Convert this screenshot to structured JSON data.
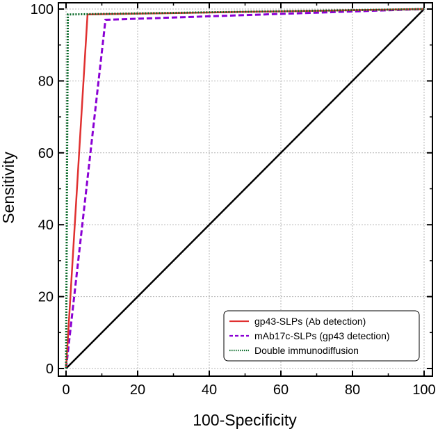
{
  "chart_data": {
    "type": "line",
    "xlabel": "100-Specificity",
    "ylabel": "Sensitivity",
    "xlim": [
      0,
      100
    ],
    "ylim": [
      0,
      100
    ],
    "xticks": [
      0,
      20,
      40,
      60,
      80,
      100
    ],
    "yticks": [
      0,
      20,
      40,
      60,
      80,
      100
    ],
    "grid": true,
    "legend_position": "bottom-right",
    "series": [
      {
        "name": "gp43-SLPs (Ab detection)",
        "color": "#e03030",
        "style": "solid",
        "x": [
          0,
          6,
          100
        ],
        "y": [
          0,
          98.5,
          100
        ]
      },
      {
        "name": "mAb17c-SLPs (gp43 detection)",
        "color": "#8a00d4",
        "style": "dashed",
        "x": [
          0,
          11,
          100
        ],
        "y": [
          0,
          97,
          100
        ]
      },
      {
        "name": "Double immunodiffusion",
        "color": "#0a6b2a",
        "style": "dotted",
        "x": [
          0,
          0.5,
          100
        ],
        "y": [
          0,
          98.5,
          100
        ]
      },
      {
        "name": "",
        "color": "#000000",
        "style": "solid",
        "x": [
          0,
          100
        ],
        "y": [
          0,
          100
        ]
      }
    ]
  }
}
